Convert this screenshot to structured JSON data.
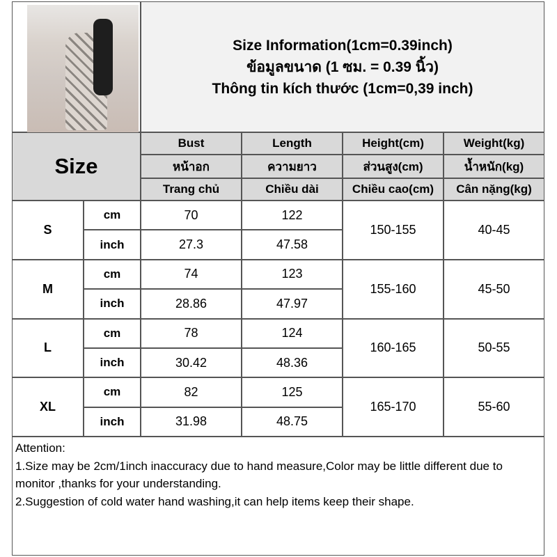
{
  "title_lines": [
    "Size Information(1cm=0.39inch)",
    "ข้อมูลขนาด (1 ซม. = 0.39 นิ้ว)",
    "Thông tin kích thước (1cm=0,39 inch)"
  ],
  "size_label": "Size",
  "columns": [
    [
      "Bust",
      "หน้าอก",
      "Trang chủ"
    ],
    [
      "Length",
      "ความยาว",
      "Chiều dài"
    ],
    [
      "Height(cm)",
      "ส่วนสูง(cm)",
      "Chiều cao(cm)"
    ],
    [
      "Weight(kg)",
      "น้ำหนัก(kg)",
      "Cân nặng(kg)"
    ]
  ],
  "units": [
    "cm",
    "inch"
  ],
  "rows": [
    {
      "size": "S",
      "cm": [
        "70",
        "122"
      ],
      "inch": [
        "27.3",
        "47.58"
      ],
      "height": "150-155",
      "weight": "40-45"
    },
    {
      "size": "M",
      "cm": [
        "74",
        "123"
      ],
      "inch": [
        "28.86",
        "47.97"
      ],
      "height": "155-160",
      "weight": "45-50"
    },
    {
      "size": "L",
      "cm": [
        "78",
        "124"
      ],
      "inch": [
        "30.42",
        "48.36"
      ],
      "height": "160-165",
      "weight": "50-55"
    },
    {
      "size": "XL",
      "cm": [
        "82",
        "125"
      ],
      "inch": [
        "31.98",
        "48.75"
      ],
      "height": "165-170",
      "weight": "55-60"
    }
  ],
  "attention": {
    "heading": "Attention:",
    "notes": [
      "1.Size may be 2cm/1inch inaccuracy due to hand measure,Color may be little different due to monitor ,thanks for your understanding.",
      "2.Suggestion of cold water hand washing,it can help items keep their shape."
    ]
  }
}
